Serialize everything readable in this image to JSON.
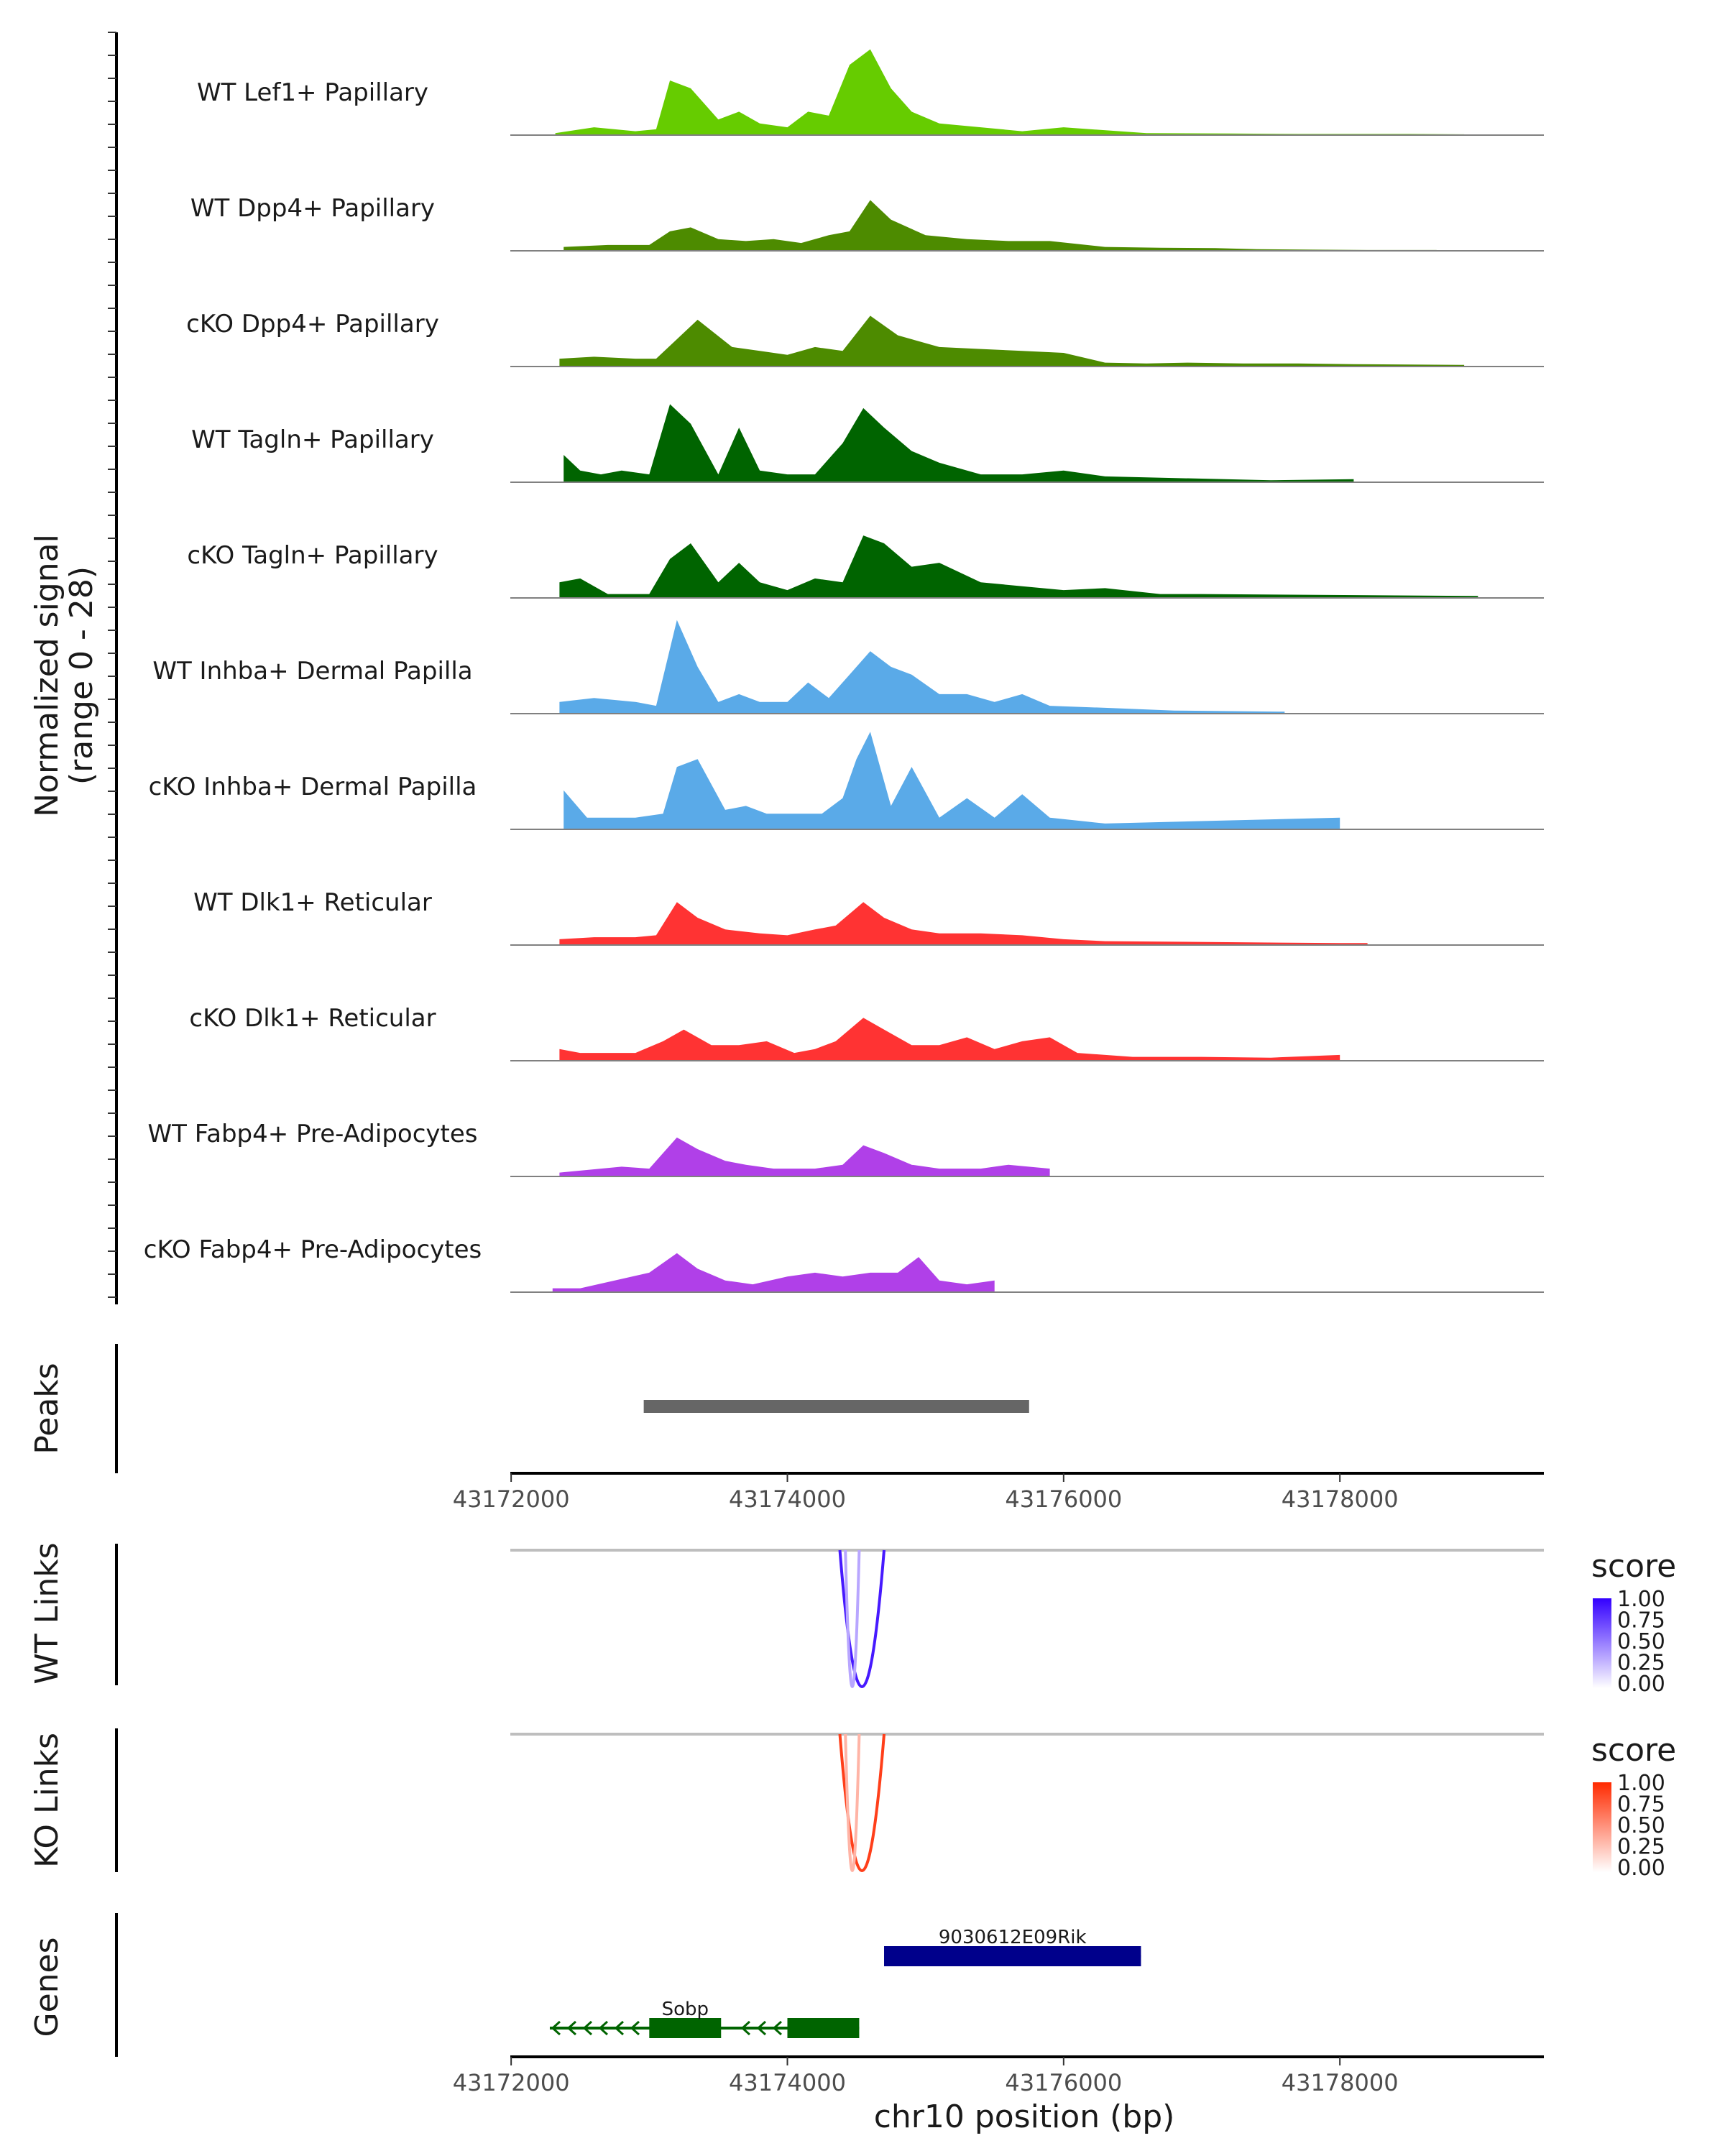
{
  "chart_data": {
    "type": "area",
    "title": "",
    "ylabel": "Normalized signal",
    "ylabel_range": "(range 0 - 28)",
    "ylim": [
      0,
      28
    ],
    "xlabel": "chr10 position (bp)",
    "xlim": [
      43171994,
      43179477
    ],
    "xticks": [
      "43172000",
      "43174000",
      "43176000",
      "43178000"
    ],
    "xtick_values": [
      43172000,
      43174000,
      43176000,
      43178000
    ],
    "coverage_tracks": [
      {
        "name": "WT Lef1+ Papillary",
        "color": "#66cc00",
        "x": [
          43172320,
          43172600,
          43172900,
          43173050,
          43173150,
          43173300,
          43173500,
          43173650,
          43173800,
          43174000,
          43174150,
          43174300,
          43174450,
          43174600,
          43174750,
          43174900,
          43175100,
          43175400,
          43175700,
          43176000,
          43176600,
          43177200,
          43177700,
          43178100,
          43178500,
          43178900
        ],
        "y": [
          0.5,
          2,
          1,
          1.5,
          14,
          12,
          4,
          6,
          3,
          2,
          6,
          5,
          18,
          22,
          12,
          6,
          3,
          2,
          1,
          2,
          0.5,
          0.4,
          0.3,
          0.3,
          0.3,
          0.2
        ]
      },
      {
        "name": "WT Dpp4+ Papillary",
        "color": "#4d8b00",
        "x": [
          43172380,
          43172700,
          43173000,
          43173150,
          43173300,
          43173500,
          43173700,
          43173900,
          43174100,
          43174300,
          43174450,
          43174600,
          43174750,
          43175000,
          43175300,
          43175600,
          43175900,
          43176300,
          43176700,
          43177100,
          43177400,
          43177800,
          43178200,
          43178700
        ],
        "y": [
          1,
          1.5,
          1.5,
          5,
          6,
          3,
          2.5,
          3,
          2,
          4,
          5,
          13,
          8,
          4,
          3,
          2.5,
          2.5,
          1,
          0.8,
          0.7,
          0.4,
          0.3,
          0.2,
          0.2
        ]
      },
      {
        "name": "cKO Dpp4+ Papillary",
        "color": "#4d8b00",
        "x": [
          43172350,
          43172600,
          43172900,
          43173050,
          43173200,
          43173350,
          43173600,
          43173800,
          43174000,
          43174200,
          43174400,
          43174600,
          43174800,
          43175100,
          43175400,
          43175700,
          43176000,
          43176300,
          43176600,
          43176900,
          43177300,
          43177700,
          43178100,
          43178500,
          43178900
        ],
        "y": [
          2,
          2.5,
          2,
          2,
          7,
          12,
          5,
          4,
          3,
          5,
          4,
          13,
          8,
          5,
          4.5,
          4,
          3.5,
          1,
          0.8,
          1,
          0.8,
          0.8,
          0.6,
          0.5,
          0.4
        ]
      },
      {
        "name": "WT Tagln+ Papillary",
        "color": "#006400",
        "x": [
          43172380,
          43172500,
          43172650,
          43172800,
          43173000,
          43173150,
          43173300,
          43173500,
          43173650,
          43173800,
          43174000,
          43174200,
          43174400,
          43174550,
          43174700,
          43174900,
          43175100,
          43175400,
          43175700,
          43176000,
          43176300,
          43177500,
          43178100
        ],
        "y": [
          7,
          3,
          2,
          3,
          2,
          20,
          15,
          2,
          14,
          3,
          2,
          2,
          10,
          19,
          14,
          8,
          5,
          2,
          2,
          3,
          1.5,
          0.5,
          0.8
        ]
      },
      {
        "name": "cKO Tagln+ Papillary",
        "color": "#006400",
        "x": [
          43172350,
          43172500,
          43172700,
          43173000,
          43173150,
          43173300,
          43173500,
          43173650,
          43173800,
          43174000,
          43174200,
          43174400,
          43174550,
          43174700,
          43174900,
          43175100,
          43175400,
          43175700,
          43176000,
          43176300,
          43176700,
          43177000,
          43179000
        ],
        "y": [
          4,
          5,
          1,
          1,
          10,
          14,
          4,
          9,
          4,
          2,
          5,
          4,
          16,
          14,
          8,
          9,
          4,
          3,
          2,
          2.5,
          1,
          1,
          0.5
        ]
      },
      {
        "name": "WT Inhba+ Dermal Papilla",
        "color": "#5aaae8",
        "x": [
          43172350,
          43172600,
          43172900,
          43173050,
          43173200,
          43173350,
          43173500,
          43173650,
          43173800,
          43174000,
          43174150,
          43174300,
          43174450,
          43174600,
          43174750,
          43174900,
          43175100,
          43175300,
          43175500,
          43175700,
          43175900,
          43176300,
          43176800,
          43177600
        ],
        "y": [
          3,
          4,
          3,
          2,
          24,
          12,
          3,
          5,
          3,
          3,
          8,
          4,
          10,
          16,
          12,
          10,
          5,
          5,
          3,
          5,
          2,
          1.5,
          0.8,
          0.5
        ]
      },
      {
        "name": "cKO Inhba+ Dermal Papilla",
        "color": "#5aaae8",
        "x": [
          43172380,
          43172550,
          43172700,
          43172900,
          43173100,
          43173200,
          43173350,
          43173550,
          43173700,
          43173850,
          43174050,
          43174250,
          43174400,
          43174500,
          43174600,
          43174750,
          43174900,
          43175100,
          43175300,
          43175500,
          43175700,
          43175900,
          43176300,
          43178000
        ],
        "y": [
          10,
          3,
          3,
          3,
          4,
          16,
          18,
          5,
          6,
          4,
          4,
          4,
          8,
          18,
          25,
          6,
          16,
          3,
          8,
          3,
          9,
          3,
          1.5,
          3
        ]
      },
      {
        "name": "WT Dlk1+ Reticular",
        "color": "#ff3333",
        "x": [
          43172350,
          43172600,
          43172900,
          43173050,
          43173200,
          43173350,
          43173550,
          43173800,
          43174000,
          43174200,
          43174350,
          43174550,
          43174700,
          43174900,
          43175100,
          43175400,
          43175700,
          43176000,
          43176300,
          43178000,
          43178200
        ],
        "y": [
          1.5,
          2,
          2,
          2.5,
          11,
          7,
          4,
          3,
          2.5,
          4,
          5,
          11,
          7,
          4,
          3,
          3,
          2.5,
          1.5,
          1,
          0.5,
          0.5
        ]
      },
      {
        "name": "cKO Dlk1+ Reticular",
        "color": "#ff3333",
        "x": [
          43172350,
          43172500,
          43172700,
          43172900,
          43173100,
          43173250,
          43173450,
          43173650,
          43173850,
          43174050,
          43174200,
          43174350,
          43174550,
          43174700,
          43174900,
          43175100,
          43175300,
          43175500,
          43175700,
          43175900,
          43176100,
          43176500,
          43177000,
          43177500,
          43178000
        ],
        "y": [
          3,
          2,
          2,
          2,
          5,
          8,
          4,
          4,
          5,
          2,
          3,
          5,
          11,
          8,
          4,
          4,
          6,
          3,
          5,
          6,
          2,
          1,
          1,
          0.8,
          1.5
        ]
      },
      {
        "name": "WT Fabp4+ Pre-Adipocytes",
        "color": "#b040e8",
        "x": [
          43172350,
          43172800,
          43173000,
          43173200,
          43173350,
          43173550,
          43173700,
          43173900,
          43174200,
          43174400,
          43174550,
          43174700,
          43174900,
          43175100,
          43175400,
          43175600,
          43175900
        ],
        "y": [
          1,
          2.5,
          2,
          10,
          7,
          4,
          3,
          2,
          2,
          3,
          8,
          6,
          3,
          2,
          2,
          3,
          2
        ]
      },
      {
        "name": "cKO Fabp4+ Pre-Adipocytes",
        "color": "#b040e8",
        "x": [
          43172300,
          43172500,
          43173000,
          43173200,
          43173350,
          43173550,
          43173750,
          43174000,
          43174200,
          43174400,
          43174600,
          43174800,
          43174950,
          43175100,
          43175300,
          43175500
        ],
        "y": [
          1,
          1,
          5,
          10,
          6,
          3,
          2,
          4,
          5,
          4,
          5,
          5,
          9,
          3,
          2,
          3
        ]
      }
    ],
    "peaks": {
      "label": "Peaks",
      "start": 43172960,
      "end": 43175750,
      "color": "#666666"
    },
    "links_tracks": [
      {
        "label": "WT Links",
        "legend_title": "score",
        "legend_ticks": [
          "1.00",
          "0.75",
          "0.50",
          "0.25",
          "0.00"
        ],
        "color_high": "#3300ff",
        "color_low": "#ffffff",
        "arcs": [
          {
            "start": 43174380,
            "end": 43174700,
            "score": 0.9
          },
          {
            "start": 43174420,
            "end": 43174520,
            "score": 0.35
          }
        ]
      },
      {
        "label": "KO Links",
        "legend_title": "score",
        "legend_ticks": [
          "1.00",
          "0.75",
          "0.50",
          "0.25",
          "0.00"
        ],
        "color_high": "#ff2a00",
        "color_low": "#ffffff",
        "arcs": [
          {
            "start": 43174380,
            "end": 43174700,
            "score": 0.9
          },
          {
            "start": 43174420,
            "end": 43174520,
            "score": 0.35
          }
        ]
      }
    ],
    "genes": {
      "label": "Genes",
      "items": [
        {
          "name": "9030612E09Rik",
          "start": 43174700,
          "end": 43176560,
          "strand": "+",
          "color": "#00008b",
          "exons": [
            [
              43174700,
              43176560
            ]
          ]
        },
        {
          "name": "Sobp",
          "start": 43172280,
          "end": 43174520,
          "strand": "-",
          "color": "#006400",
          "exons": [
            [
              43173000,
              43173520
            ],
            [
              43174000,
              43174520
            ]
          ]
        }
      ]
    }
  }
}
